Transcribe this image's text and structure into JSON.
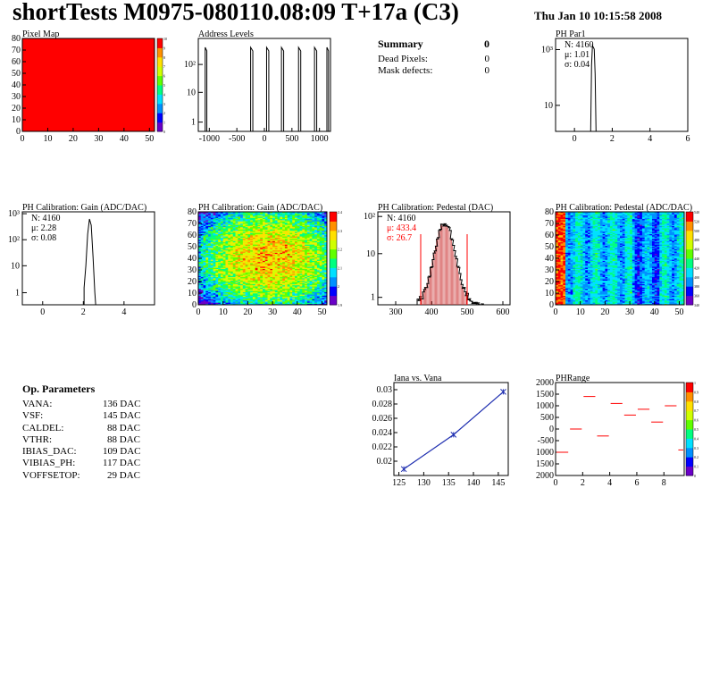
{
  "header": {
    "title": "shortTests M0975-080110.08:09 T+17a (C3)",
    "date": "Thu Jan 10 10:15:58 2008"
  },
  "summary": {
    "title": "Summary",
    "value": "0",
    "rows": [
      {
        "label": "Dead Pixels:",
        "value": "0"
      },
      {
        "label": "Mask defects:",
        "value": "0"
      }
    ]
  },
  "op_params": {
    "title": "Op. Parameters",
    "rows": [
      {
        "label": "VANA:",
        "value": "136 DAC"
      },
      {
        "label": "VSF:",
        "value": "145 DAC"
      },
      {
        "label": "CALDEL:",
        "value": "88 DAC"
      },
      {
        "label": "VTHR:",
        "value": "88 DAC"
      },
      {
        "label": "IBIAS_DAC:",
        "value": "109 DAC"
      },
      {
        "label": "VIBIAS_PH:",
        "value": "117 DAC"
      },
      {
        "label": "VOFFSETOP:",
        "value": "29 DAC"
      }
    ]
  },
  "colors": {
    "red": "#ff0000",
    "line": "#000000",
    "blue": "#1f2fb0",
    "palette": [
      "#6a00c8",
      "#0000ff",
      "#0090ff",
      "#00e0ff",
      "#00ff80",
      "#60ff00",
      "#d0ff00",
      "#ffe000",
      "#ff9000",
      "#ff0000"
    ]
  },
  "chart_data": [
    {
      "id": "pixel_map",
      "type": "heatmap",
      "title": "Pixel Map",
      "xlim": [
        0,
        52
      ],
      "ylim": [
        0,
        80
      ],
      "xticks": [
        "0",
        "10",
        "20",
        "30",
        "40",
        "50"
      ],
      "yticks": [
        "0",
        "10",
        "20",
        "30",
        "40",
        "50",
        "60",
        "70",
        "80"
      ],
      "fill_value": 10,
      "colorbar_ticks": [
        "0",
        "1",
        "2",
        "3",
        "4",
        "5",
        "6",
        "7",
        "8",
        "9",
        "10"
      ]
    },
    {
      "id": "address_levels",
      "type": "line",
      "title": "Address Levels",
      "log_y": true,
      "xlim": [
        -1200,
        1200
      ],
      "xticks": [
        "-1000",
        "-500",
        "0",
        "500",
        "1000"
      ],
      "yticks": [
        "1",
        "10",
        "10²"
      ],
      "peaks": [
        {
          "x": -1060,
          "y": 200,
          "w": 30
        },
        {
          "x": -230,
          "y": 200,
          "w": 40
        },
        {
          "x": 60,
          "y": 230,
          "w": 40
        },
        {
          "x": 330,
          "y": 200,
          "w": 40
        },
        {
          "x": 640,
          "y": 200,
          "w": 40
        },
        {
          "x": 930,
          "y": 200,
          "w": 40
        },
        {
          "x": 1150,
          "y": 100,
          "w": 30
        }
      ]
    },
    {
      "id": "ph_par1",
      "type": "line",
      "title": "PH Par1",
      "log_y": true,
      "xlim": [
        -1,
        6
      ],
      "xticks": [
        "0",
        "2",
        "4",
        "6"
      ],
      "yticks": [
        "10",
        "10³"
      ],
      "stats": [
        "N: 4160",
        "μ: 1.01",
        "σ: 0.04"
      ],
      "peak": {
        "x": 1.0,
        "y": 700,
        "w": 0.12
      }
    },
    {
      "id": "ph_gain",
      "type": "line",
      "title": "PH Calibration: Gain (ADC/DAC)",
      "log_y": true,
      "xlim": [
        -1,
        5.5
      ],
      "xticks": [
        "0",
        "2",
        "4"
      ],
      "yticks": [
        "1",
        "10",
        "10²",
        "10³"
      ],
      "stats": [
        "N: 4160",
        "μ: 2.28",
        "σ: 0.08"
      ],
      "peak": {
        "x": 2.3,
        "y": 550,
        "w": 0.3
      }
    },
    {
      "id": "ph_gain_map",
      "type": "heatmap",
      "title": "PH Calibration: Gain (ADC/DAC)",
      "xlim": [
        0,
        52
      ],
      "ylim": [
        0,
        80
      ],
      "xticks": [
        "0",
        "10",
        "20",
        "30",
        "40",
        "50"
      ],
      "yticks": [
        "0",
        "10",
        "20",
        "30",
        "40",
        "50",
        "60",
        "70",
        "80"
      ],
      "colorbar_ticks": [
        "1.9",
        "2",
        "2.1",
        "2.2",
        "2.3",
        "2.4"
      ]
    },
    {
      "id": "ph_pedestal",
      "type": "bar",
      "title": "PH Calibration: Pedestal (DAC)",
      "log_y": true,
      "xlim": [
        250,
        620
      ],
      "xticks": [
        "300",
        "400",
        "500",
        "600"
      ],
      "yticks": [
        "1",
        "10",
        "10²"
      ],
      "stats": [
        "N: 4160",
        "μ: 433.4",
        "σ: 26.7"
      ],
      "stats_colors": [
        "#000000",
        "#ff0000",
        "#ff0000"
      ],
      "peak": {
        "x": 435,
        "y": 80,
        "w": 60
      },
      "markers": [
        370,
        500
      ]
    },
    {
      "id": "ph_pedestal_map",
      "type": "heatmap",
      "title": "PH Calibration: Pedestal (ADC/DAC)",
      "xlim": [
        0,
        52
      ],
      "ylim": [
        0,
        80
      ],
      "xticks": [
        "0",
        "10",
        "20",
        "30",
        "40",
        "50"
      ],
      "yticks": [
        "0",
        "10",
        "20",
        "30",
        "40",
        "50",
        "60",
        "70",
        "80"
      ],
      "colorbar_ticks": [
        "340",
        "360",
        "380",
        "400",
        "420",
        "440",
        "460",
        "480",
        "500",
        "520",
        "540"
      ]
    },
    {
      "id": "iana_vana",
      "type": "line",
      "title": "Iana vs. Vana",
      "xlim": [
        124,
        147
      ],
      "ylim": [
        0.018,
        0.031
      ],
      "xticks": [
        "125",
        "130",
        "135",
        "140",
        "145"
      ],
      "yticks": [
        "0.02",
        "0.022",
        "0.024",
        "0.026",
        "0.028",
        "0.03"
      ],
      "x": [
        126,
        136,
        146
      ],
      "y": [
        0.0189,
        0.0237,
        0.0297
      ]
    },
    {
      "id": "ph_range",
      "type": "scatter",
      "title": "PHRange",
      "xlim": [
        0,
        9.5
      ],
      "ylim": [
        -2000,
        2000
      ],
      "xticks": [
        "0",
        "2",
        "4",
        "6",
        "8"
      ],
      "yticks": [
        "2000",
        "1500",
        "1000",
        "500",
        "0",
        "-500",
        "1000",
        "1500",
        "2000"
      ],
      "x": [
        0,
        1,
        2,
        3,
        4,
        5,
        6,
        7,
        8,
        9
      ],
      "y": [
        -1000,
        0,
        1400,
        -300,
        1100,
        600,
        850,
        300,
        1000,
        -900
      ],
      "colorbar_ticks": [
        "0",
        "0.1",
        "0.2",
        "0.3",
        "0.4",
        "0.5",
        "0.6",
        "0.7",
        "0.8",
        "0.9",
        "1"
      ]
    }
  ]
}
